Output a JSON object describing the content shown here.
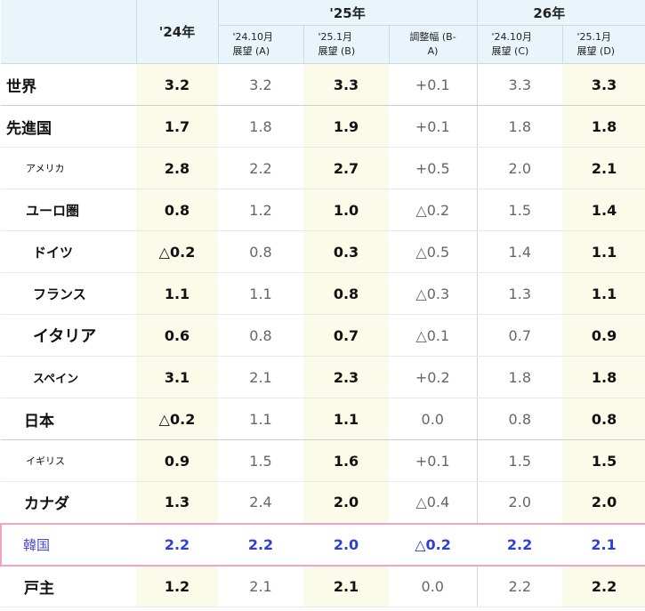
{
  "header": {
    "col_24": "'24年",
    "col_25": "'25年",
    "col_26": "26年",
    "sub": [
      {
        "line1": "'24.10月",
        "line2": "展望 (A)"
      },
      {
        "line1": "'25.1月",
        "line2": "展望 (B)"
      },
      {
        "line1": "調整幅 (B-",
        "line2": "A)"
      },
      {
        "line1": "'24.10月",
        "line2": "展望 (C)"
      },
      {
        "line1": "'25.1月",
        "line2": "展望 (D)"
      }
    ]
  },
  "rows": [
    {
      "name": "世界",
      "v24": "3.2",
      "a": "3.2",
      "b": "3.3",
      "adj": "+0.1",
      "c": "3.3",
      "d": "3.3"
    },
    {
      "name": "先進国",
      "v24": "1.7",
      "a": "1.8",
      "b": "1.9",
      "adj": "+0.1",
      "c": "1.8",
      "d": "1.8"
    },
    {
      "name": "アメリカ",
      "v24": "2.8",
      "a": "2.2",
      "b": "2.7",
      "adj": "+0.5",
      "c": "2.0",
      "d": "2.1"
    },
    {
      "name": "ユーロ圏",
      "v24": "0.8",
      "a": "1.2",
      "b": "1.0",
      "adj": "△0.2",
      "c": "1.5",
      "d": "1.4"
    },
    {
      "name": "ドイツ",
      "v24": "△0.2",
      "a": "0.8",
      "b": "0.3",
      "adj": "△0.5",
      "c": "1.4",
      "d": "1.1"
    },
    {
      "name": "フランス",
      "v24": "1.1",
      "a": "1.1",
      "b": "0.8",
      "adj": "△0.3",
      "c": "1.3",
      "d": "1.1"
    },
    {
      "name": "イタリア",
      "v24": "0.6",
      "a": "0.8",
      "b": "0.7",
      "adj": "△0.1",
      "c": "0.7",
      "d": "0.9"
    },
    {
      "name": "スペイン",
      "v24": "3.1",
      "a": "2.1",
      "b": "2.3",
      "adj": "+0.2",
      "c": "1.8",
      "d": "1.8"
    },
    {
      "name": "日本",
      "v24": "△0.2",
      "a": "1.1",
      "b": "1.1",
      "adj": "0.0",
      "c": "0.8",
      "d": "0.8"
    },
    {
      "name": "イギリス",
      "v24": "0.9",
      "a": "1.5",
      "b": "1.6",
      "adj": "+0.1",
      "c": "1.5",
      "d": "1.5"
    },
    {
      "name": "カナダ",
      "v24": "1.3",
      "a": "2.4",
      "b": "2.0",
      "adj": "△0.4",
      "c": "2.0",
      "d": "2.0"
    },
    {
      "name": "韓国",
      "v24": "2.2",
      "a": "2.2",
      "b": "2.0",
      "adj": "△0.2",
      "c": "2.2",
      "d": "2.1"
    },
    {
      "name": "戸主",
      "v24": "1.2",
      "a": "2.1",
      "b": "2.1",
      "adj": "0.0",
      "c": "2.2",
      "d": "2.2"
    }
  ],
  "colors": {
    "header_bg": "#eaf4fb",
    "highlight_col_bg": "#fbfbe9",
    "korea_text": "#2f3fd6",
    "korea_border": "#f3a2c8"
  }
}
